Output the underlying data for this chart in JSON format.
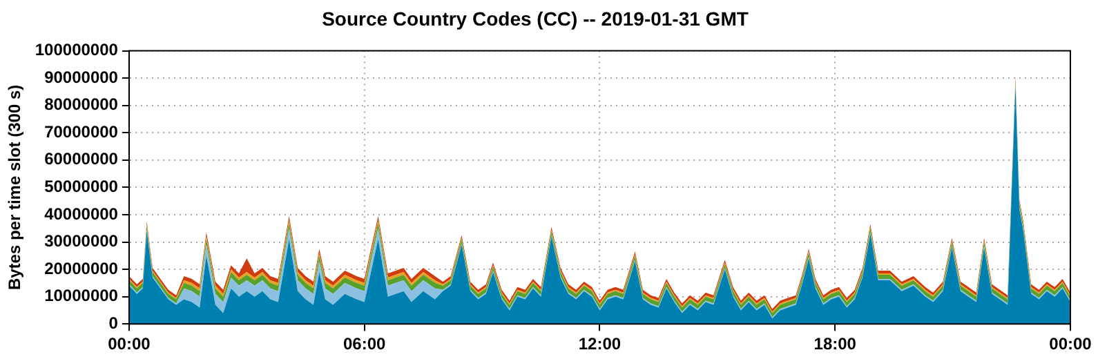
{
  "chart_data": {
    "type": "area",
    "title": "Source Country Codes (CC) -- 2019-01-31 GMT",
    "ylabel": "Bytes per time slot (300 s)",
    "stacked": true,
    "grid": true,
    "xlim": [
      0,
      24
    ],
    "xticks": [
      {
        "value": 0,
        "label": "00:00"
      },
      {
        "value": 6,
        "label": "06:00"
      },
      {
        "value": 12,
        "label": "12:00"
      },
      {
        "value": 18,
        "label": "18:00"
      },
      {
        "value": 24,
        "label": "00:00"
      }
    ],
    "ylim": [
      0,
      100000000
    ],
    "yticks": [
      0,
      10000000,
      20000000,
      30000000,
      40000000,
      50000000,
      60000000,
      70000000,
      80000000,
      90000000,
      100000000
    ],
    "x": [
      0,
      0.2,
      0.35,
      0.45,
      0.6,
      0.8,
      1,
      1.2,
      1.4,
      1.6,
      1.8,
      1.97,
      2.2,
      2.4,
      2.6,
      2.8,
      3,
      3.2,
      3.4,
      3.6,
      3.8,
      4.08,
      4.3,
      4.5,
      4.7,
      4.85,
      5,
      5.2,
      5.5,
      5.8,
      6,
      6.35,
      6.6,
      6.8,
      7,
      7.2,
      7.5,
      7.8,
      8,
      8.2,
      8.48,
      8.7,
      8.9,
      9.1,
      9.28,
      9.5,
      9.7,
      9.9,
      10.1,
      10.3,
      10.5,
      10.77,
      11,
      11.2,
      11.4,
      11.6,
      11.8,
      12,
      12.2,
      12.4,
      12.6,
      12.9,
      13.1,
      13.3,
      13.5,
      13.7,
      13.9,
      14.1,
      14.3,
      14.5,
      14.7,
      14.9,
      15.19,
      15.4,
      15.6,
      15.8,
      16,
      16.2,
      16.4,
      16.6,
      16.8,
      17,
      17.15,
      17.33,
      17.5,
      17.7,
      17.9,
      18.1,
      18.3,
      18.5,
      18.7,
      18.9,
      19.1,
      19.4,
      19.7,
      20,
      20.3,
      20.5,
      20.75,
      20.98,
      21.2,
      21.4,
      21.6,
      21.8,
      22,
      22.2,
      22.4,
      22.6,
      22.7,
      22.8,
      23,
      23.2,
      23.4,
      23.6,
      23.8,
      24
    ],
    "series": [
      {
        "color": "#0080b0",
        "values": [
          14000000.0,
          11000000.0,
          13000000.0,
          34000000.0,
          17000000.0,
          13000000.0,
          9000000.0,
          7000000.0,
          9000000.0,
          8000000.0,
          6000000.0,
          25000000.0,
          7000000.0,
          4000000.0,
          13000000.0,
          10000000.0,
          12000000.0,
          10000000.0,
          12000000.0,
          9000000.0,
          8000000.0,
          31000000.0,
          12000000.0,
          9000000.0,
          7000000.0,
          19000000.0,
          9000000.0,
          7000000.0,
          11000000.0,
          9000000.0,
          8000000.0,
          31000000.0,
          10000000.0,
          11000000.0,
          12000000.0,
          8000000.0,
          12000000.0,
          9000000.0,
          12000000.0,
          14000000.0,
          29000000.0,
          12000000.0,
          9000000.0,
          11000000.0,
          19000000.0,
          9000000.0,
          5000000.0,
          10000000.0,
          9000000.0,
          13000000.0,
          10000000.0,
          32000000.0,
          17000000.0,
          11000000.0,
          9000000.0,
          12000000.0,
          10000000.0,
          5000000.0,
          9000000.0,
          10000000.0,
          9000000.0,
          23000000.0,
          9000000.0,
          7000000.0,
          6000000.0,
          13000000.0,
          8000000.0,
          4000000.0,
          7000000.0,
          5000000.0,
          8000000.0,
          7000000.0,
          20000000.0,
          10000000.0,
          5000000.0,
          8000000.0,
          5000000.0,
          7000000.0,
          2000000.0,
          5000000.0,
          6000000.0,
          7000000.0,
          14000000.0,
          24000000.0,
          13000000.0,
          7000000.0,
          9000000.0,
          10000000.0,
          6000000.0,
          9000000.0,
          17000000.0,
          33000000.0,
          16000000.0,
          16000000.0,
          12000000.0,
          14000000.0,
          10000000.0,
          8000000.0,
          12000000.0,
          28000000.0,
          12000000.0,
          10000000.0,
          8000000.0,
          28000000.0,
          11000000.0,
          9000000.0,
          7000000.0,
          87000000.0,
          42000000.0,
          34000000.0,
          11000000.0,
          9000000.0,
          12000000.0,
          10000000.0,
          13000000.0,
          8000000.0
        ]
      },
      {
        "color": "#8cc0e0",
        "values": [
          500000.0,
          500000.0,
          500000.0,
          500000.0,
          500000.0,
          500000.0,
          500000.0,
          500000.0,
          4000000.0,
          4000000.0,
          4000000.0,
          4000000.0,
          4000000.0,
          4000000.0,
          4000000.0,
          4000000.0,
          4000000.0,
          4000000.0,
          4000000.0,
          4000000.0,
          4000000.0,
          4000000.0,
          4000000.0,
          4000000.0,
          4000000.0,
          4000000.0,
          4000000.0,
          4000000.0,
          4000000.0,
          4000000.0,
          4000000.0,
          4000000.0,
          4000000.0,
          4000000.0,
          4000000.0,
          4000000.0,
          4000000.0,
          4000000.0,
          500000.0,
          500000.0,
          500000.0,
          500000.0,
          500000.0,
          500000.0,
          500000.0,
          500000.0,
          500000.0,
          500000.0,
          500000.0,
          500000.0,
          500000.0,
          500000.0,
          500000.0,
          500000.0,
          500000.0,
          500000.0,
          500000.0,
          500000.0,
          500000.0,
          500000.0,
          500000.0,
          500000.0,
          500000.0,
          500000.0,
          500000.0,
          500000.0,
          500000.0,
          500000.0,
          500000.0,
          500000.0,
          500000.0,
          500000.0,
          500000.0,
          500000.0,
          500000.0,
          500000.0,
          500000.0,
          500000.0,
          500000.0,
          500000.0,
          500000.0,
          500000.0,
          500000.0,
          500000.0,
          500000.0,
          500000.0,
          500000.0,
          500000.0,
          500000.0,
          500000.0,
          500000.0,
          500000.0,
          500000.0,
          500000.0,
          500000.0,
          500000.0,
          500000.0,
          500000.0,
          500000.0,
          500000.0,
          500000.0,
          500000.0,
          500000.0,
          500000.0,
          500000.0,
          500000.0,
          500000.0,
          500000.0,
          500000.0,
          500000.0,
          500000.0,
          500000.0,
          500000.0,
          500000.0,
          500000.0,
          500000.0
        ]
      },
      {
        "color": "#5aa02c",
        "values": [
          1500000.0,
          1500000.0,
          1500000.0,
          1500000.0,
          1500000.0,
          1500000.0,
          1500000.0,
          1500000.0,
          2000000.0,
          2000000.0,
          2000000.0,
          2000000.0,
          2000000.0,
          2000000.0,
          2000000.0,
          2000000.0,
          2000000.0,
          2000000.0,
          2000000.0,
          2000000.0,
          2000000.0,
          2000000.0,
          2000000.0,
          2000000.0,
          2000000.0,
          2000000.0,
          2000000.0,
          2000000.0,
          2000000.0,
          2000000.0,
          2000000.0,
          2000000.0,
          2000000.0,
          2000000.0,
          2000000.0,
          2000000.0,
          2000000.0,
          2000000.0,
          1500000.0,
          1500000.0,
          1500000.0,
          1500000.0,
          1500000.0,
          1500000.0,
          1500000.0,
          1500000.0,
          1500000.0,
          1500000.0,
          1500000.0,
          1500000.0,
          1500000.0,
          1500000.0,
          1500000.0,
          1500000.0,
          1500000.0,
          1500000.0,
          1500000.0,
          1500000.0,
          1500000.0,
          1500000.0,
          1500000.0,
          1500000.0,
          1500000.0,
          1500000.0,
          1500000.0,
          1500000.0,
          1500000.0,
          1500000.0,
          1500000.0,
          1500000.0,
          1500000.0,
          1500000.0,
          1500000.0,
          1500000.0,
          1500000.0,
          1500000.0,
          1500000.0,
          1500000.0,
          1500000.0,
          1500000.0,
          1500000.0,
          1500000.0,
          1500000.0,
          1500000.0,
          1500000.0,
          1500000.0,
          1500000.0,
          1500000.0,
          1500000.0,
          1500000.0,
          1500000.0,
          1500000.0,
          1500000.0,
          1500000.0,
          1500000.0,
          1500000.0,
          1500000.0,
          1500000.0,
          1500000.0,
          1500000.0,
          1500000.0,
          1500000.0,
          1500000.0,
          1500000.0,
          1500000.0,
          1500000.0,
          1500000.0,
          1500000.0,
          1500000.0,
          1500000.0,
          1500000.0,
          1500000.0,
          1500000.0,
          1500000.0,
          1500000.0,
          1500000.0
        ]
      },
      {
        "color": "#e8a020",
        "values": [
          500000.0,
          500000.0,
          500000.0,
          500000.0,
          500000.0,
          500000.0,
          500000.0,
          500000.0,
          1000000.0,
          1000000.0,
          1000000.0,
          1000000.0,
          1000000.0,
          1000000.0,
          1000000.0,
          1000000.0,
          1000000.0,
          1000000.0,
          1000000.0,
          1000000.0,
          1000000.0,
          1000000.0,
          1000000.0,
          1000000.0,
          1000000.0,
          1000000.0,
          1000000.0,
          1000000.0,
          1000000.0,
          1000000.0,
          1000000.0,
          1000000.0,
          1000000.0,
          1000000.0,
          1000000.0,
          1000000.0,
          1000000.0,
          1000000.0,
          500000.0,
          500000.0,
          500000.0,
          500000.0,
          500000.0,
          500000.0,
          500000.0,
          500000.0,
          500000.0,
          500000.0,
          500000.0,
          500000.0,
          500000.0,
          500000.0,
          500000.0,
          500000.0,
          500000.0,
          500000.0,
          500000.0,
          500000.0,
          500000.0,
          500000.0,
          500000.0,
          500000.0,
          500000.0,
          500000.0,
          500000.0,
          500000.0,
          500000.0,
          500000.0,
          500000.0,
          500000.0,
          500000.0,
          500000.0,
          500000.0,
          500000.0,
          500000.0,
          500000.0,
          500000.0,
          500000.0,
          500000.0,
          500000.0,
          500000.0,
          500000.0,
          500000.0,
          500000.0,
          500000.0,
          500000.0,
          500000.0,
          500000.0,
          500000.0,
          500000.0,
          500000.0,
          500000.0,
          500000.0,
          500000.0,
          500000.0,
          500000.0,
          500000.0,
          500000.0,
          500000.0,
          500000.0,
          500000.0,
          500000.0,
          500000.0,
          500000.0,
          500000.0,
          500000.0,
          500000.0,
          500000.0,
          500000.0,
          500000.0,
          500000.0,
          500000.0,
          500000.0,
          500000.0,
          500000.0,
          500000.0
        ]
      },
      {
        "color": "#d03c10",
        "values": [
          1000000.0,
          1000000.0,
          1000000.0,
          1000000.0,
          1000000.0,
          1000000.0,
          1000000.0,
          1000000.0,
          1500000.0,
          1500000.0,
          1500000.0,
          1500000.0,
          1500000.0,
          1500000.0,
          1500000.0,
          1500000.0,
          5000000.0,
          1500000.0,
          1500000.0,
          1500000.0,
          1500000.0,
          1500000.0,
          1500000.0,
          1500000.0,
          1500000.0,
          1500000.0,
          1500000.0,
          1500000.0,
          1500000.0,
          1500000.0,
          1500000.0,
          1500000.0,
          1500000.0,
          1500000.0,
          1500000.0,
          1500000.0,
          1500000.0,
          1500000.0,
          1000000.0,
          1000000.0,
          1000000.0,
          1000000.0,
          1000000.0,
          1000000.0,
          1000000.0,
          1000000.0,
          1000000.0,
          1000000.0,
          1000000.0,
          1000000.0,
          1000000.0,
          1000000.0,
          1000000.0,
          1000000.0,
          1000000.0,
          1000000.0,
          1000000.0,
          1000000.0,
          1000000.0,
          1000000.0,
          1000000.0,
          1000000.0,
          1000000.0,
          1000000.0,
          1000000.0,
          1000000.0,
          1000000.0,
          1000000.0,
          1000000.0,
          1000000.0,
          1000000.0,
          1000000.0,
          1000000.0,
          1000000.0,
          1000000.0,
          1000000.0,
          1000000.0,
          1000000.0,
          1000000.0,
          1000000.0,
          1000000.0,
          1000000.0,
          1000000.0,
          1000000.0,
          1000000.0,
          1000000.0,
          1000000.0,
          1000000.0,
          1000000.0,
          1000000.0,
          1000000.0,
          1000000.0,
          1000000.0,
          1000000.0,
          1000000.0,
          1000000.0,
          1000000.0,
          1000000.0,
          1000000.0,
          1000000.0,
          1000000.0,
          1000000.0,
          1000000.0,
          1000000.0,
          1000000.0,
          1000000.0,
          1000000.0,
          1000000.0,
          1000000.0,
          1000000.0,
          1000000.0,
          1000000.0,
          1000000.0,
          1000000.0,
          1000000.0,
          1000000.0
        ]
      }
    ]
  }
}
